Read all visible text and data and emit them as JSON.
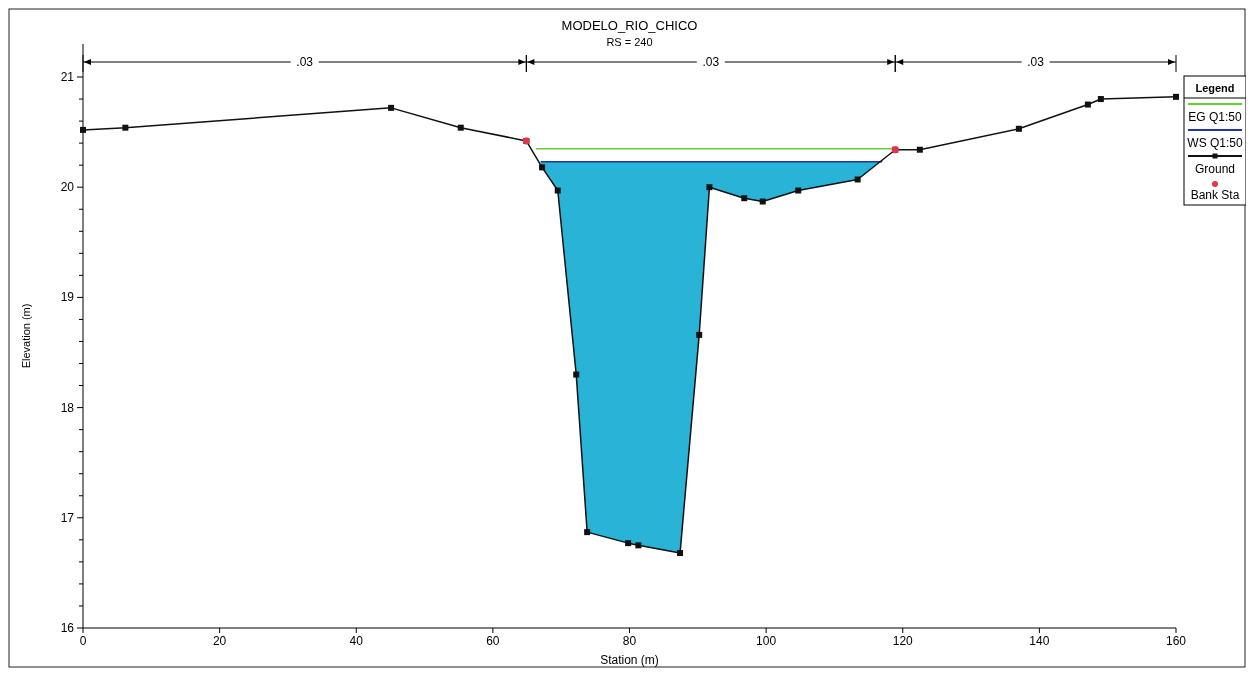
{
  "chart_data": {
    "type": "line",
    "title": "MODELO_RIO_CHICO",
    "subtitle": "RS = 240",
    "xlabel": "Station (m)",
    "ylabel": "Elevation (m)",
    "legend_title": "Legend",
    "legend": "right",
    "grid": false,
    "xlim": [
      0,
      160
    ],
    "xticks": [
      0,
      20,
      40,
      60,
      80,
      100,
      120,
      140,
      160
    ],
    "ylim": [
      16,
      21.3
    ],
    "yticks": [
      16,
      {
        "value": 16.2,
        "label": null
      },
      {
        "value": 16.4,
        "label": null
      },
      {
        "value": 16.6,
        "label": null
      },
      {
        "value": 16.8,
        "label": null
      },
      17,
      {
        "value": 17.2,
        "label": null
      },
      {
        "value": 17.4,
        "label": null
      },
      {
        "value": 17.6,
        "label": null
      },
      {
        "value": 17.8,
        "label": null
      },
      18,
      {
        "value": 18.2,
        "label": null
      },
      {
        "value": 18.4,
        "label": null
      },
      {
        "value": 18.6,
        "label": null
      },
      {
        "value": 18.8,
        "label": null
      },
      19,
      {
        "value": 19.2,
        "label": null
      },
      {
        "value": 19.4,
        "label": null
      },
      {
        "value": 19.6,
        "label": null
      },
      {
        "value": 19.8,
        "label": null
      },
      20,
      {
        "value": 20.2,
        "label": null
      },
      {
        "value": 20.4,
        "label": null
      },
      {
        "value": 20.6,
        "label": null
      },
      {
        "value": 20.8,
        "label": null
      },
      21
    ],
    "annotations": [
      ".03",
      ".03",
      ".03"
    ],
    "series": [
      {
        "name": "EG Q1:50",
        "color": "#66cc33",
        "x": [
          66.3,
          118.9
        ],
        "values": [
          20.35,
          20.35
        ]
      },
      {
        "name": "WS Q1:50",
        "type": "area",
        "color": "#2233aa",
        "x": [
          67.0,
          117.0
        ],
        "values": [
          20.23,
          20.23
        ]
      },
      {
        "name": "Ground",
        "color": "#111111",
        "marker": "square",
        "x": [
          0,
          6.2,
          45.1,
          55.3,
          64.9,
          67.2,
          69.5,
          72.2,
          73.8,
          79.8,
          81.3,
          87.4,
          90.2,
          91.7,
          96.8,
          99.5,
          104.7,
          113.4,
          118.9,
          122.5,
          137.0,
          147.1,
          149.0,
          160
        ],
        "values": [
          20.52,
          20.54,
          20.72,
          20.54,
          20.42,
          20.18,
          19.97,
          18.3,
          16.87,
          16.77,
          16.75,
          16.68,
          18.66,
          20.0,
          19.9,
          19.87,
          19.97,
          20.07,
          20.34,
          20.34,
          20.53,
          20.75,
          20.8,
          20.82
        ]
      },
      {
        "name": "Bank Sta",
        "type": "scatter",
        "color": "#e8344a",
        "marker": "circle",
        "x": [
          64.9,
          118.9
        ],
        "values": [
          20.42,
          20.34
        ]
      }
    ]
  }
}
